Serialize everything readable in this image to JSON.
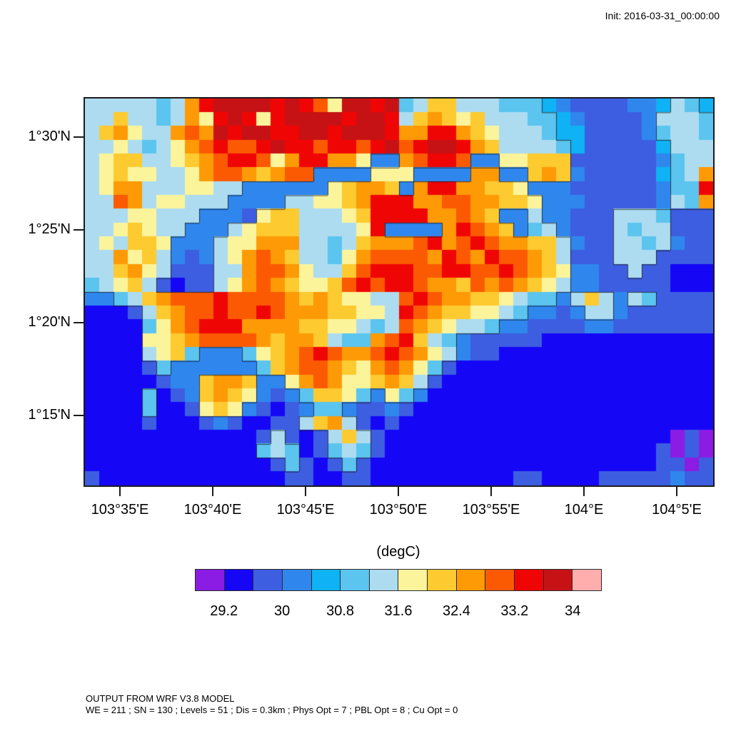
{
  "annotations": {
    "init": "Init: 2016-03-31_00:00:00"
  },
  "footer": {
    "line1": "OUTPUT FROM WRF V3.8 MODEL",
    "line2": "WE = 211 ; SN = 130 ; Levels = 51 ; Dis = 0.3km ; Phys Opt = 7 ; PBL Opt = 8 ; Cu Opt = 0"
  },
  "chart_data": {
    "type": "heatmap",
    "title": "",
    "units": "(degC)",
    "x_axis": {
      "tick_labels": [
        "103°35'E",
        "103°40'E",
        "103°45'E",
        "103°50'E",
        "103°55'E",
        "104°E",
        "104°5'E"
      ]
    },
    "y_axis": {
      "tick_labels": [
        "1°30'N",
        "1°25'N",
        "1°20'N",
        "1°15'N"
      ]
    },
    "colorbar": {
      "title": "(degC)",
      "tick_labels": [
        "29.2",
        "30",
        "30.8",
        "31.6",
        "32.4",
        "33.2",
        "34"
      ],
      "tick_boundary_indices": [
        1,
        3,
        5,
        7,
        9,
        11,
        13
      ],
      "level_boundaries_degC": [
        28.8,
        29.2,
        29.6,
        30,
        30.4,
        30.8,
        31.2,
        31.6,
        32,
        32.4,
        32.8,
        33.2,
        33.6,
        34,
        34.4
      ],
      "palette": [
        "#8a1ce4",
        "#1507f6",
        "#3d5ee1",
        "#2f87ee",
        "#0fb2f5",
        "#5bc4ef",
        "#addcf0",
        "#fbf49b",
        "#fdca30",
        "#fd9a06",
        "#fb5a02",
        "#f00505",
        "#c61215",
        "#ffadad"
      ],
      "coastline_color": "#1a1a1a"
    },
    "grid": {
      "cols": 44,
      "rows": 28,
      "encoding": "each character is a palette index 0-9,a-d (temperature level, 0 coolest to d hottest)",
      "rows_data": [
        "66666569bccccbcba7ccbc5688666555432222334654",
        "668665697bcb7bccccbccb6898786665543222236665",
        "6897669a9cbccbbccbcccb99bb987666544222235665",
        "66765679abaabcbbabbabcabccb98666654222224666",
        "678866789abba79bb997339abba33778882222223566",
        "678776679aa989aa3333777333399338983222224569",
        "679966677663333337899839bb99887333222222355b",
        "66a96776663333667789bbb99aa99887333222223659",
        "66677666333278866678bbbb99a98336332226665222",
        "66787663336788866667b33339ba9835632226566222",
        "67688733367799966568999ab9aba998863226656322",
        "669786323679a9866579aaaa9ba9baa9862226662222",
        "668976222669aa97668abbbaabbaaba9873322622111",
        "567862122679a98778ababba998a9a98763322222111",
        "335689aaabaaaa98987766aba9988765536863652222",
        "1112689aabaaba99988776ba98877653323663222222",
        "1111579abbb99998877656a987665332222332222222",
        "11117789aaaa989986559ab865322222111111111111",
        "111167853335789aba99aba976322111111111111111",
        "111125333333589aa9879a9752111111111111111111",
        "1111123389983379a977898621111111111111111111",
        "11115123898732358875375311111111111111111111",
        "11115112787321235532232111111111111111111111",
        "11112111232112268962121111111111111111111111",
        "11111111111126212686211111111111111111111020",
        "11111111111156512565211111111111111111112020",
        "11111111111112521252111111111111111111112202",
        "21111111111111221122111111111122111122222322"
      ]
    }
  }
}
